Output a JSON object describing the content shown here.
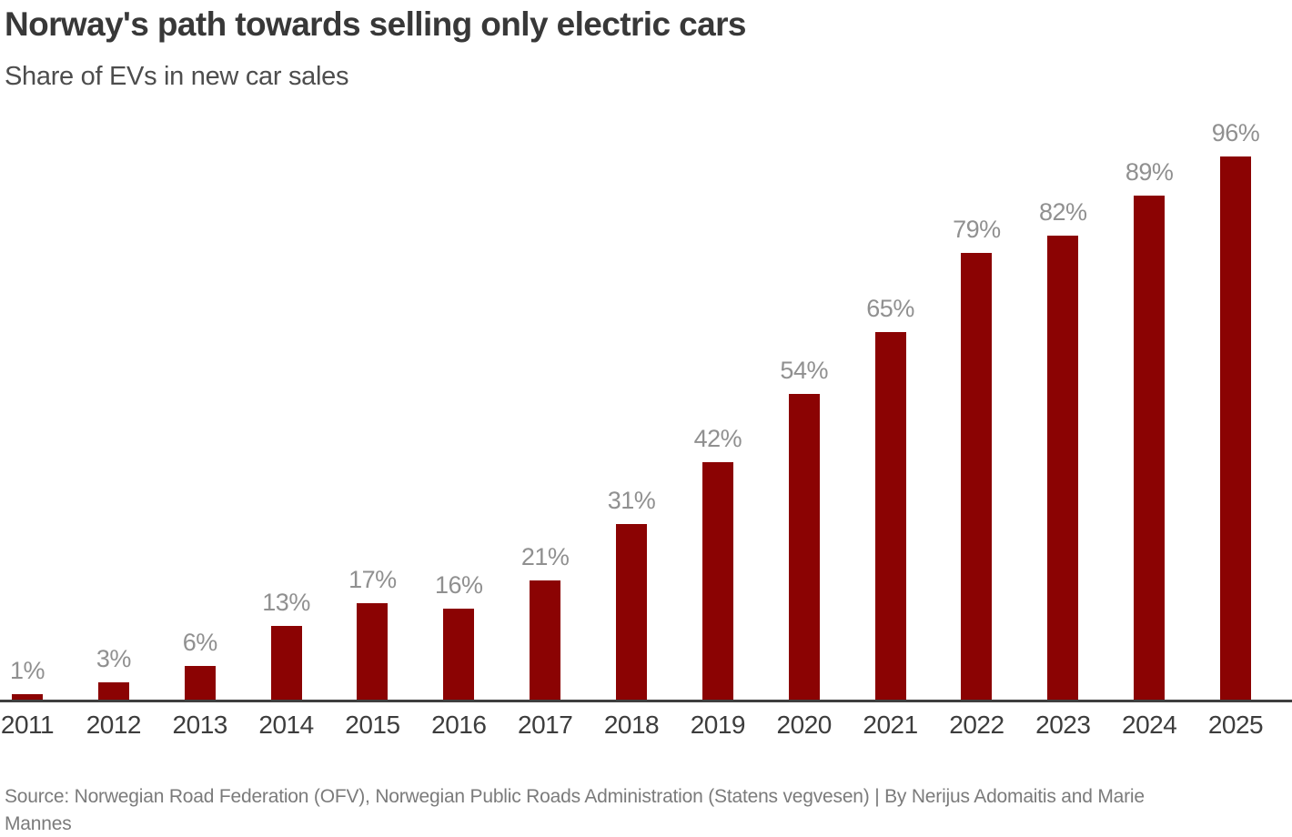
{
  "header": {
    "title": "Norway's path towards selling only electric cars",
    "subtitle": "Share of EVs in new car sales"
  },
  "chart_data": {
    "type": "bar",
    "title": "Norway's path towards selling only electric cars",
    "subtitle": "Share of EVs in new car sales",
    "categories": [
      "2011",
      "2012",
      "2013",
      "2014",
      "2015",
      "2016",
      "2017",
      "2018",
      "2019",
      "2020",
      "2021",
      "2022",
      "2023",
      "2024",
      "2025"
    ],
    "values": [
      1,
      3,
      6,
      13,
      17,
      16,
      21,
      31,
      42,
      54,
      65,
      79,
      82,
      89,
      96
    ],
    "value_labels": [
      "1%",
      "3%",
      "6%",
      "13%",
      "17%",
      "16%",
      "21%",
      "31%",
      "42%",
      "54%",
      "65%",
      "79%",
      "82%",
      "89%",
      "96%"
    ],
    "xlabel": "",
    "ylabel": "",
    "ylim": [
      0,
      100
    ],
    "grid": false,
    "legend": false,
    "y_axis_visible": false,
    "colors": {
      "bar": "#8b0303",
      "axis": "#3f3f3f",
      "value_label": "#909090",
      "tick_label": "#3d3d3d",
      "title": "#383838",
      "subtitle": "#4d4d4d",
      "source": "#7b7b7b"
    }
  },
  "footer": {
    "source": "Source: Norwegian Road Federation (OFV), Norwegian Public Roads Administration (Statens vegvesen)  | By Nerijus Adomaitis and Marie Mannes"
  }
}
